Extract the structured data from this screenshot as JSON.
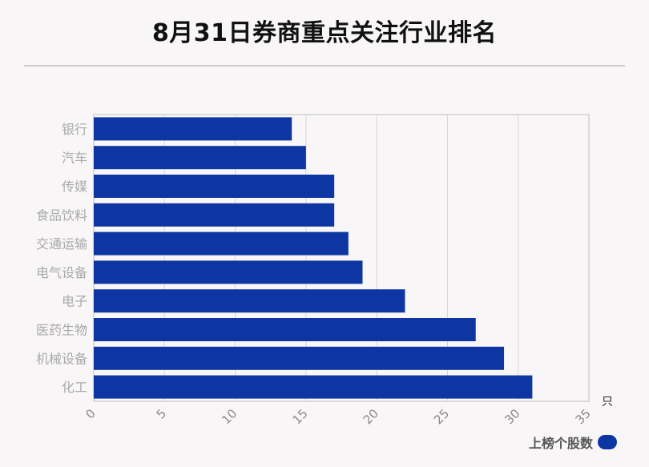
{
  "title": "8月31日券商重点关注行业排名",
  "colors": {
    "bar": "#0d36a3",
    "grid": "#d6d6d6",
    "axis": "#bdbdbd"
  },
  "chart_data": {
    "type": "bar",
    "orientation": "horizontal",
    "title": "8月31日券商重点关注行业排名",
    "categories": [
      "银行",
      "汽车",
      "传媒",
      "食品饮料",
      "交通运输",
      "电气设备",
      "电子",
      "医药生物",
      "机械设备",
      "化工"
    ],
    "series": [
      {
        "name": "上榜个股数",
        "values": [
          14,
          15,
          17,
          17,
          18,
          19,
          22,
          27,
          29,
          31
        ]
      }
    ],
    "x_unit": "只",
    "xlim": [
      0,
      35
    ],
    "x_ticks": [
      "0",
      "5",
      "10",
      "15",
      "20",
      "25",
      "30",
      "35"
    ],
    "grid": true,
    "legend_position": "bottom-right"
  }
}
